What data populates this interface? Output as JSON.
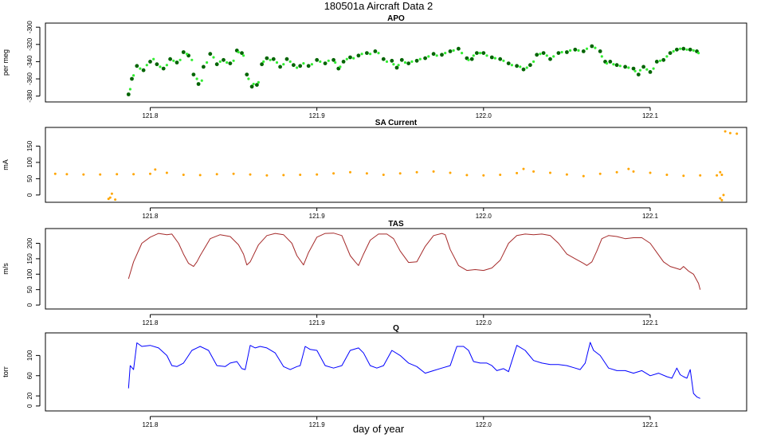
{
  "figure": {
    "title": "180501a   Aircraft Data 2",
    "xlabel": "day of year"
  },
  "chart_data": [
    {
      "type": "scatter",
      "title": "APO",
      "ylabel": "per meg",
      "xlim": [
        121.74,
        122.155
      ],
      "ylim": [
        -384,
        -298
      ],
      "y_reversed": true,
      "xticks": [
        121.8,
        121.9,
        122.0,
        122.1
      ],
      "xtick_labels": [
        "121.8",
        "121.9",
        "122.0",
        "122.1"
      ],
      "yticks": [
        -300,
        -320,
        -340,
        -360,
        -380
      ],
      "ytick_labels": [
        "-300",
        "-320",
        "-340",
        "-360",
        "-380"
      ],
      "series": [
        {
          "color": "#006400",
          "x": [
            121.787,
            121.789,
            121.792,
            121.796,
            121.8,
            121.804,
            121.808,
            121.812,
            121.816,
            121.82,
            121.823,
            121.826,
            121.829,
            121.832,
            121.836,
            121.84,
            121.844,
            121.848,
            121.852,
            121.855,
            121.858,
            121.861,
            121.864,
            121.867,
            121.87,
            121.874,
            121.878,
            121.882,
            121.886,
            121.89,
            121.895,
            121.9,
            121.905,
            121.91,
            121.913,
            121.916,
            121.92,
            121.925,
            121.93,
            121.935,
            121.94,
            121.945,
            121.948,
            121.951,
            121.955,
            121.96,
            121.965,
            121.97,
            121.975,
            121.98,
            121.985,
            121.99,
            121.993,
            121.996,
            122.0,
            122.005,
            122.01,
            122.015,
            122.02,
            122.024,
            122.028,
            122.032,
            122.036,
            122.04,
            122.045,
            122.05,
            122.055,
            122.06,
            122.065,
            122.07,
            122.073,
            122.076,
            122.08,
            122.085,
            122.09,
            122.093,
            122.096,
            122.1,
            122.104,
            122.108,
            122.112,
            122.116,
            122.12,
            122.124,
            122.128
          ],
          "y": [
            -378,
            -360,
            -345,
            -350,
            -340,
            -343,
            -348,
            -337,
            -341,
            -329,
            -333,
            -355,
            -366,
            -346,
            -331,
            -343,
            -338,
            -342,
            -327,
            -330,
            -355,
            -369,
            -367,
            -343,
            -336,
            -337,
            -346,
            -337,
            -344,
            -345,
            -345,
            -338,
            -342,
            -338,
            -348,
            -340,
            -335,
            -333,
            -330,
            -328,
            -337,
            -339,
            -347,
            -338,
            -342,
            -339,
            -336,
            -331,
            -332,
            -328,
            -325,
            -336,
            -337,
            -330,
            -330,
            -335,
            -337,
            -342,
            -345,
            -349,
            -344,
            -332,
            -330,
            -337,
            -330,
            -329,
            -326,
            -328,
            -322,
            -328,
            -340,
            -340,
            -344,
            -346,
            -348,
            -355,
            -346,
            -352,
            -340,
            -338,
            -330,
            -326,
            -325,
            -326,
            -328
          ]
        },
        {
          "color": "#32ee32",
          "x": [
            121.788,
            121.79,
            121.794,
            121.798,
            121.802,
            121.806,
            121.81,
            121.814,
            121.818,
            121.822,
            121.825,
            121.828,
            121.831,
            121.834,
            121.838,
            121.842,
            121.846,
            121.85,
            121.853,
            121.856,
            121.859,
            121.862,
            121.865,
            121.868,
            121.872,
            121.876,
            121.88,
            121.884,
            121.888,
            121.892,
            121.897,
            121.902,
            121.907,
            121.911,
            121.914,
            121.918,
            121.922,
            121.927,
            121.932,
            121.937,
            121.942,
            121.946,
            121.949,
            121.953,
            121.957,
            121.962,
            121.967,
            121.972,
            121.977,
            121.982,
            121.987,
            121.991,
            121.994,
            121.998,
            122.002,
            122.007,
            122.012,
            122.017,
            122.022,
            122.026,
            122.03,
            122.034,
            122.038,
            122.042,
            122.047,
            122.052,
            122.057,
            122.062,
            122.067,
            122.071,
            122.074,
            122.078,
            122.082,
            122.087,
            122.091,
            122.094,
            122.098,
            122.102,
            122.106,
            122.11,
            122.114,
            122.118,
            122.122,
            122.126,
            122.129
          ],
          "y": [
            -372,
            -356,
            -348,
            -344,
            -337,
            -346,
            -344,
            -339,
            -338,
            -331,
            -338,
            -360,
            -362,
            -341,
            -335,
            -340,
            -341,
            -339,
            -329,
            -333,
            -360,
            -366,
            -364,
            -340,
            -338,
            -341,
            -343,
            -340,
            -347,
            -342,
            -343,
            -340,
            -339,
            -341,
            -346,
            -337,
            -336,
            -331,
            -331,
            -330,
            -340,
            -343,
            -344,
            -341,
            -340,
            -337,
            -334,
            -333,
            -330,
            -327,
            -330,
            -338,
            -333,
            -330,
            -333,
            -336,
            -339,
            -344,
            -346,
            -347,
            -340,
            -331,
            -333,
            -334,
            -329,
            -327,
            -327,
            -325,
            -324,
            -334,
            -342,
            -343,
            -345,
            -347,
            -351,
            -350,
            -349,
            -348,
            -339,
            -334,
            -328,
            -325,
            -326,
            -327,
            -330
          ]
        }
      ]
    },
    {
      "type": "scatter",
      "title": "SA Current",
      "ylabel": "mA",
      "xlim": [
        121.74,
        122.155
      ],
      "ylim": [
        -15,
        200
      ],
      "xticks": [
        121.8,
        121.9,
        122.0,
        122.1
      ],
      "xtick_labels": [
        "121.8",
        "121.9",
        "122.0",
        "122.1"
      ],
      "yticks": [
        0,
        50,
        100,
        150
      ],
      "ytick_labels": [
        "0",
        "50",
        "100",
        "150"
      ],
      "series": [
        {
          "color": "#ffa500",
          "x": [
            121.743,
            121.75,
            121.76,
            121.77,
            121.78,
            121.79,
            121.8,
            121.81,
            121.82,
            121.83,
            121.84,
            121.85,
            121.86,
            121.87,
            121.88,
            121.89,
            121.9,
            121.91,
            121.92,
            121.93,
            121.94,
            121.95,
            121.96,
            121.97,
            121.98,
            121.99,
            122.0,
            122.01,
            122.02,
            122.03,
            122.04,
            122.05,
            122.06,
            122.07,
            122.08,
            122.09,
            122.1,
            122.11,
            122.12,
            122.13,
            122.14,
            122.143,
            122.145,
            122.148,
            122.152,
            121.775,
            121.776,
            121.777,
            121.779,
            122.142,
            122.143,
            122.144,
            121.803,
            122.024,
            122.087,
            122.142
          ],
          "y": [
            65,
            64,
            63,
            63,
            64,
            64,
            65,
            68,
            62,
            61,
            64,
            65,
            63,
            60,
            61,
            62,
            63,
            66,
            70,
            66,
            62,
            66,
            70,
            72,
            68,
            61,
            60,
            62,
            67,
            72,
            68,
            63,
            58,
            65,
            70,
            72,
            68,
            62,
            59,
            60,
            60,
            62,
            195,
            190,
            188,
            -12,
            -8,
            4,
            -14,
            -10,
            -16,
            0,
            78,
            80,
            80,
            70
          ]
        }
      ]
    },
    {
      "type": "line",
      "title": "TAS",
      "ylabel": "m/s",
      "xlim": [
        121.74,
        122.155
      ],
      "ylim": [
        -5,
        240
      ],
      "xticks": [
        121.8,
        121.9,
        122.0,
        122.1
      ],
      "xtick_labels": [
        "121.8",
        "121.9",
        "122.0",
        "122.1"
      ],
      "yticks": [
        0,
        50,
        100,
        150,
        200
      ],
      "ytick_labels": [
        "0",
        "50",
        "100",
        "150",
        "200"
      ],
      "series": [
        {
          "color": "#a52a2a",
          "x": [
            121.787,
            121.79,
            121.795,
            121.8,
            121.805,
            121.81,
            121.813,
            121.817,
            121.82,
            121.823,
            121.826,
            121.828,
            121.83,
            121.836,
            121.842,
            121.848,
            121.853,
            121.856,
            121.858,
            121.86,
            121.865,
            121.87,
            121.875,
            121.88,
            121.885,
            121.888,
            121.892,
            121.895,
            121.9,
            121.905,
            121.91,
            121.915,
            121.92,
            121.923,
            121.925,
            121.928,
            121.932,
            121.937,
            121.942,
            121.946,
            121.95,
            121.955,
            121.96,
            121.965,
            121.97,
            121.975,
            121.977,
            121.98,
            121.985,
            121.99,
            121.995,
            122.0,
            122.005,
            122.01,
            122.015,
            122.02,
            122.025,
            122.03,
            122.035,
            122.04,
            122.045,
            122.05,
            122.055,
            122.06,
            122.062,
            122.065,
            122.068,
            122.071,
            122.075,
            122.08,
            122.085,
            122.09,
            122.095,
            122.1,
            122.104,
            122.108,
            122.112,
            122.115,
            122.118,
            122.12,
            122.123,
            122.126,
            122.128,
            122.129,
            122.13
          ],
          "y": [
            85,
            140,
            200,
            220,
            232,
            228,
            230,
            200,
            165,
            135,
            125,
            140,
            160,
            215,
            228,
            222,
            195,
            165,
            130,
            140,
            195,
            225,
            232,
            228,
            200,
            160,
            130,
            170,
            220,
            232,
            233,
            225,
            160,
            140,
            128,
            165,
            210,
            230,
            230,
            215,
            175,
            138,
            140,
            190,
            225,
            232,
            228,
            180,
            128,
            112,
            115,
            112,
            120,
            145,
            200,
            225,
            230,
            228,
            230,
            225,
            200,
            165,
            150,
            135,
            128,
            140,
            175,
            215,
            225,
            222,
            215,
            218,
            218,
            200,
            170,
            140,
            125,
            120,
            115,
            125,
            110,
            100,
            80,
            70,
            50
          ]
        }
      ]
    },
    {
      "type": "line",
      "title": "Q",
      "ylabel": "torr",
      "xlim": [
        121.74,
        122.155
      ],
      "ylim": [
        -5,
        140
      ],
      "xticks": [
        121.8,
        121.9,
        122.0,
        122.1
      ],
      "xtick_labels": [
        "121.8",
        "121.9",
        "122.0",
        "122.1"
      ],
      "yticks": [
        0,
        20,
        60,
        100
      ],
      "ytick_labels": [
        "0",
        "20",
        "60",
        "100"
      ],
      "series": [
        {
          "color": "#0000ff",
          "x": [
            121.787,
            121.788,
            121.79,
            121.792,
            121.795,
            121.8,
            121.805,
            121.81,
            121.813,
            121.816,
            121.82,
            121.825,
            121.828,
            121.83,
            121.835,
            121.84,
            121.845,
            121.848,
            121.852,
            121.855,
            121.857,
            121.86,
            121.863,
            121.866,
            121.87,
            121.875,
            121.88,
            121.884,
            121.888,
            121.89,
            121.893,
            121.896,
            121.9,
            121.905,
            121.91,
            121.915,
            121.92,
            121.925,
            121.928,
            121.932,
            121.936,
            121.94,
            121.945,
            121.95,
            121.955,
            121.96,
            121.965,
            121.97,
            121.975,
            121.98,
            121.984,
            121.988,
            121.991,
            121.994,
            121.998,
            122.002,
            122.005,
            122.008,
            122.012,
            122.015,
            122.02,
            122.025,
            122.03,
            122.035,
            122.04,
            122.045,
            122.05,
            122.055,
            122.058,
            122.061,
            122.064,
            122.066,
            122.07,
            122.075,
            122.08,
            122.085,
            122.09,
            122.095,
            122.1,
            122.105,
            122.11,
            122.113,
            122.116,
            122.118,
            122.12,
            122.122,
            122.124,
            122.126,
            122.128,
            122.13
          ],
          "y": [
            35,
            80,
            72,
            125,
            118,
            120,
            115,
            100,
            80,
            78,
            85,
            110,
            115,
            118,
            110,
            80,
            78,
            85,
            88,
            74,
            72,
            120,
            115,
            118,
            115,
            105,
            78,
            72,
            78,
            80,
            118,
            112,
            110,
            80,
            75,
            80,
            110,
            115,
            105,
            80,
            75,
            80,
            110,
            100,
            85,
            78,
            65,
            70,
            75,
            80,
            118,
            118,
            110,
            88,
            85,
            85,
            80,
            70,
            74,
            68,
            120,
            110,
            90,
            85,
            82,
            82,
            80,
            75,
            72,
            85,
            126,
            110,
            100,
            75,
            70,
            70,
            65,
            70,
            60,
            65,
            58,
            55,
            75,
            62,
            58,
            55,
            72,
            25,
            18,
            15
          ]
        }
      ]
    }
  ]
}
